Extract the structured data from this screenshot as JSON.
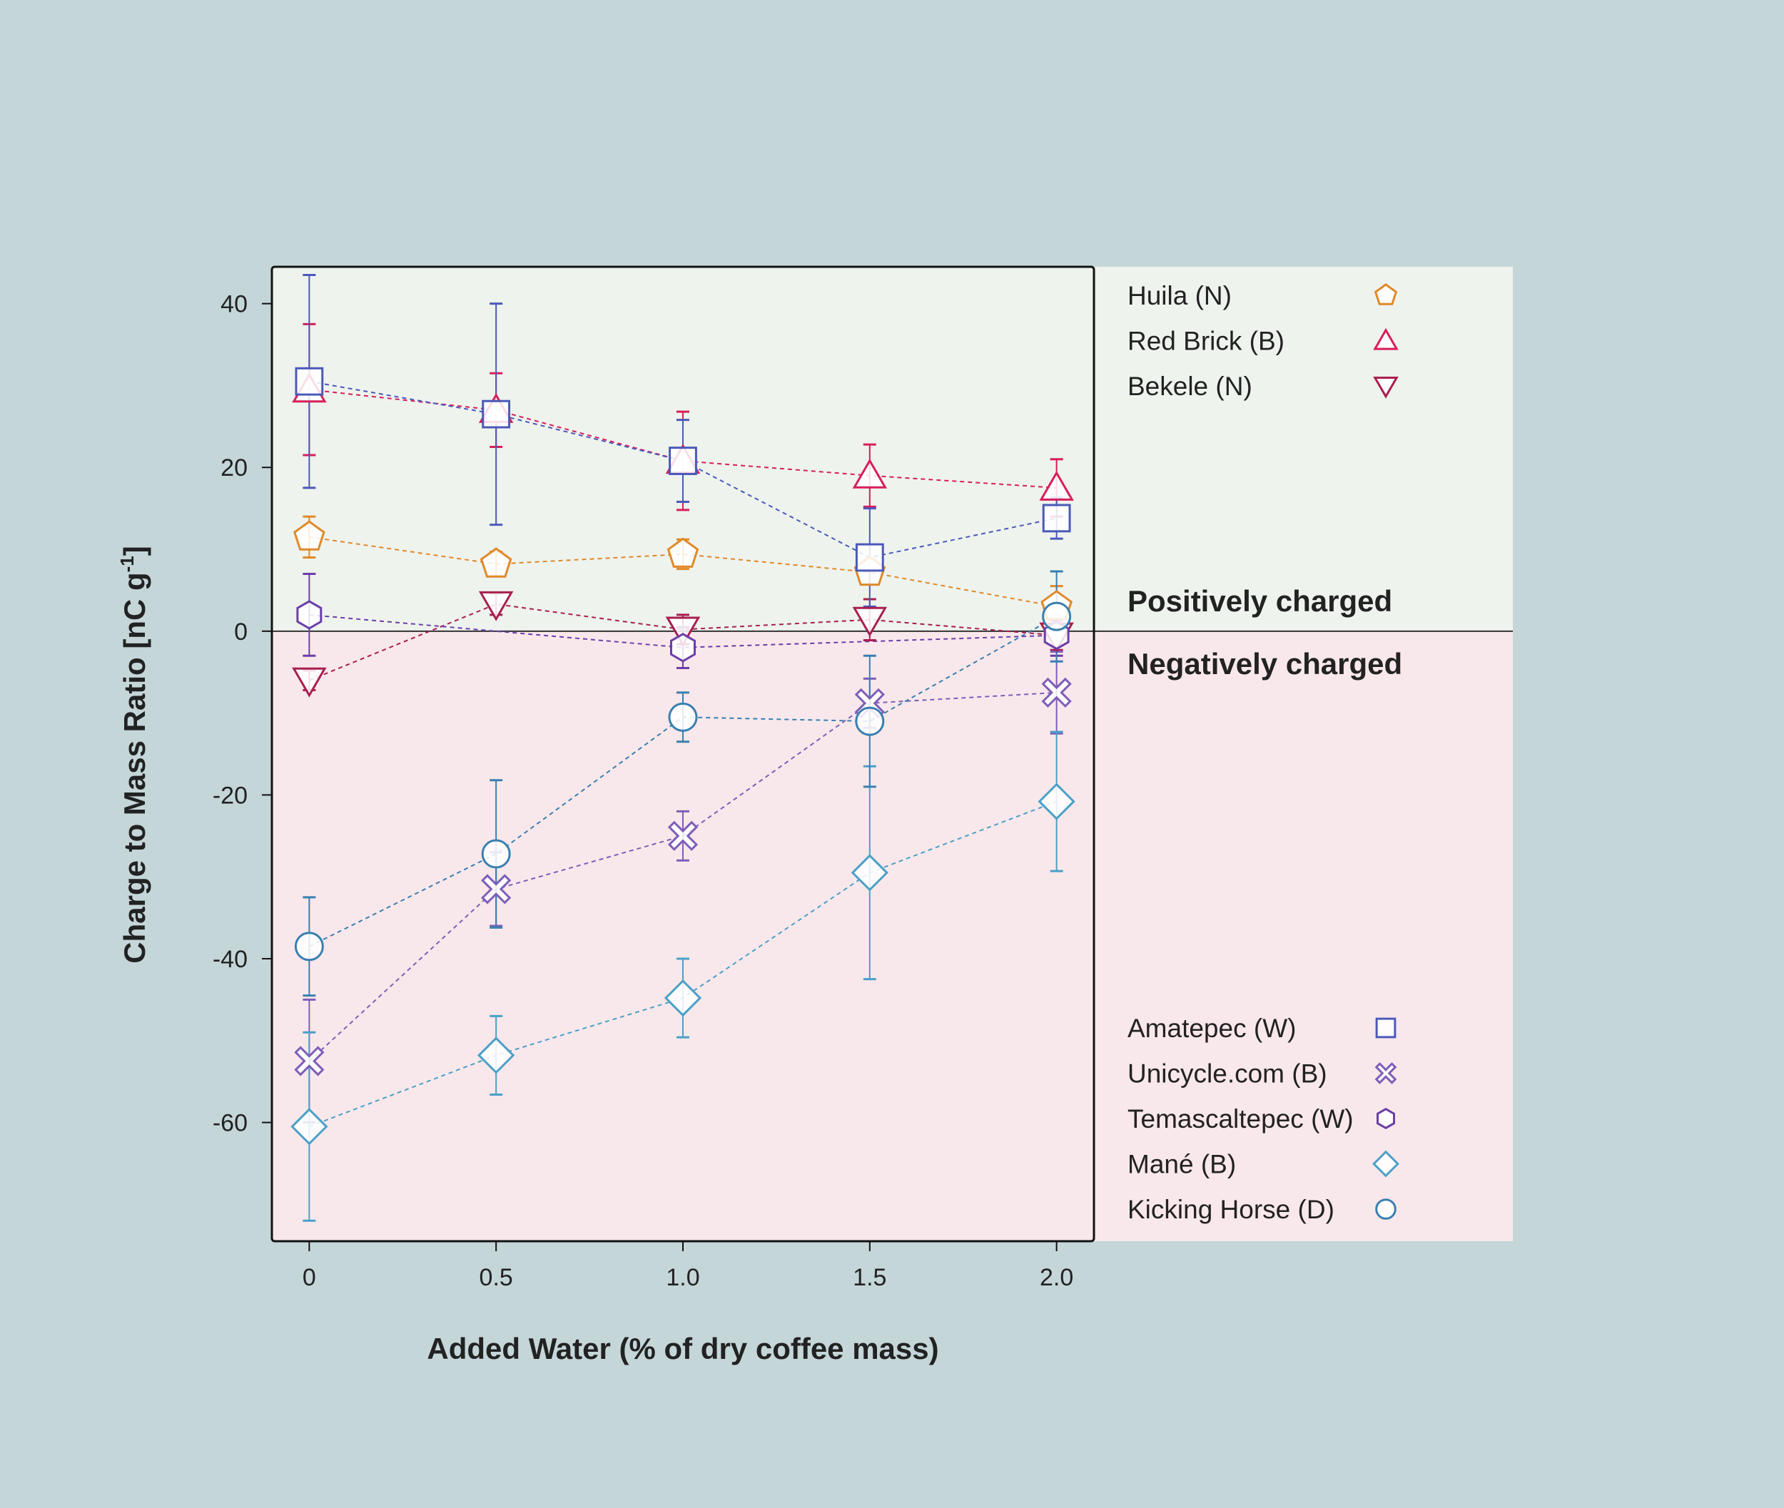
{
  "colors": {
    "page_background": "#c5d6d9",
    "positive_region": "#eef3ee",
    "negative_region": "#f9e8eb",
    "frame": "#111111"
  },
  "chart_data": {
    "type": "scatter",
    "title": "",
    "xlabel": "Added Water (% of dry coffee mass)",
    "ylabel": "Charge to Mass Ratio [nC g",
    "ylabel_superscript": "-1",
    "ylabel_close": "]",
    "xlim": [
      -0.1,
      2.1
    ],
    "ylim": [
      -74.5,
      44.5
    ],
    "x_ticks": [
      0,
      0.5,
      1.0,
      1.5,
      2.0
    ],
    "x_tick_labels": [
      "0",
      "0.5",
      "1.0",
      "1.5",
      "2.0"
    ],
    "y_ticks": [
      40,
      20,
      0,
      -20,
      -40,
      -60
    ],
    "y_tick_labels": [
      "40",
      "20",
      "0",
      "-20",
      "-40",
      "-60"
    ],
    "grid": false,
    "zero_line": 0,
    "region_labels": {
      "positive": "Positively charged",
      "negative": "Negatively charged"
    },
    "legend_placement": "right",
    "series": [
      {
        "name": "Huila (N)",
        "marker": "pentagon",
        "color": "#e0892a",
        "group": "positive",
        "x": [
          0,
          0.5,
          1.0,
          1.5,
          2.0
        ],
        "y": [
          11.5,
          8.2,
          9.4,
          7.2,
          3.0
        ],
        "err": [
          2.5,
          1.5,
          1.8,
          1.5,
          2.5
        ]
      },
      {
        "name": "Red Brick (B)",
        "marker": "triangle-up",
        "color": "#d81e5b",
        "group": "positive",
        "x": [
          0,
          0.5,
          1.0,
          1.5,
          2.0
        ],
        "y": [
          29.5,
          27.0,
          20.8,
          19.0,
          17.5
        ],
        "err": [
          8.0,
          4.5,
          6.0,
          3.8,
          3.5
        ]
      },
      {
        "name": "Bekele (N)",
        "marker": "triangle-down",
        "color": "#a81f50",
        "group": "positive",
        "x": [
          0,
          0.5,
          1.0,
          1.5,
          2.0
        ],
        "y": [
          -6.0,
          3.3,
          0.2,
          1.4,
          -0.5
        ],
        "err": [
          1.2,
          1.3,
          1.8,
          2.5,
          1.8
        ]
      },
      {
        "name": "Amatepec (W)",
        "marker": "square",
        "color": "#4b59b8",
        "group": "negative",
        "x": [
          0,
          0.5,
          1.0,
          1.5,
          2.0
        ],
        "y": [
          30.5,
          26.5,
          20.8,
          9.0,
          13.8
        ],
        "err": [
          13.0,
          13.5,
          5.0,
          6.0,
          2.5
        ]
      },
      {
        "name": "Unicycle.com (B)",
        "marker": "cross",
        "color": "#7e5eb8",
        "group": "negative",
        "x": [
          0,
          0.5,
          1.0,
          1.5,
          2.0
        ],
        "y": [
          -52.5,
          -31.5,
          -25.0,
          -8.8,
          -7.5
        ],
        "err": [
          7.5,
          4.5,
          3.0,
          3.0,
          5.0
        ]
      },
      {
        "name": "Temascaltepec (W)",
        "marker": "hexagon",
        "color": "#6b3fa8",
        "group": "negative",
        "x": [
          0,
          1.0,
          2.0
        ],
        "y": [
          2.0,
          -2.0,
          -0.5
        ],
        "err": [
          5.0,
          2.5,
          2.5
        ]
      },
      {
        "name": "Mané (B)",
        "marker": "diamond",
        "color": "#4aa0c6",
        "group": "negative",
        "x": [
          0,
          0.5,
          1.0,
          1.5,
          2.0
        ],
        "y": [
          -60.5,
          -51.8,
          -44.8,
          -29.5,
          -20.8
        ],
        "err": [
          11.5,
          4.8,
          4.8,
          13.0,
          8.5
        ]
      },
      {
        "name": "Kicking Horse (D)",
        "marker": "circle",
        "color": "#3a7fb0",
        "group": "negative",
        "x": [
          0,
          0.5,
          1.0,
          1.5,
          2.0
        ],
        "y": [
          -38.5,
          -27.2,
          -10.5,
          -11.0,
          1.8
        ],
        "err": [
          6.0,
          9.0,
          3.0,
          8.0,
          5.5
        ]
      }
    ]
  }
}
